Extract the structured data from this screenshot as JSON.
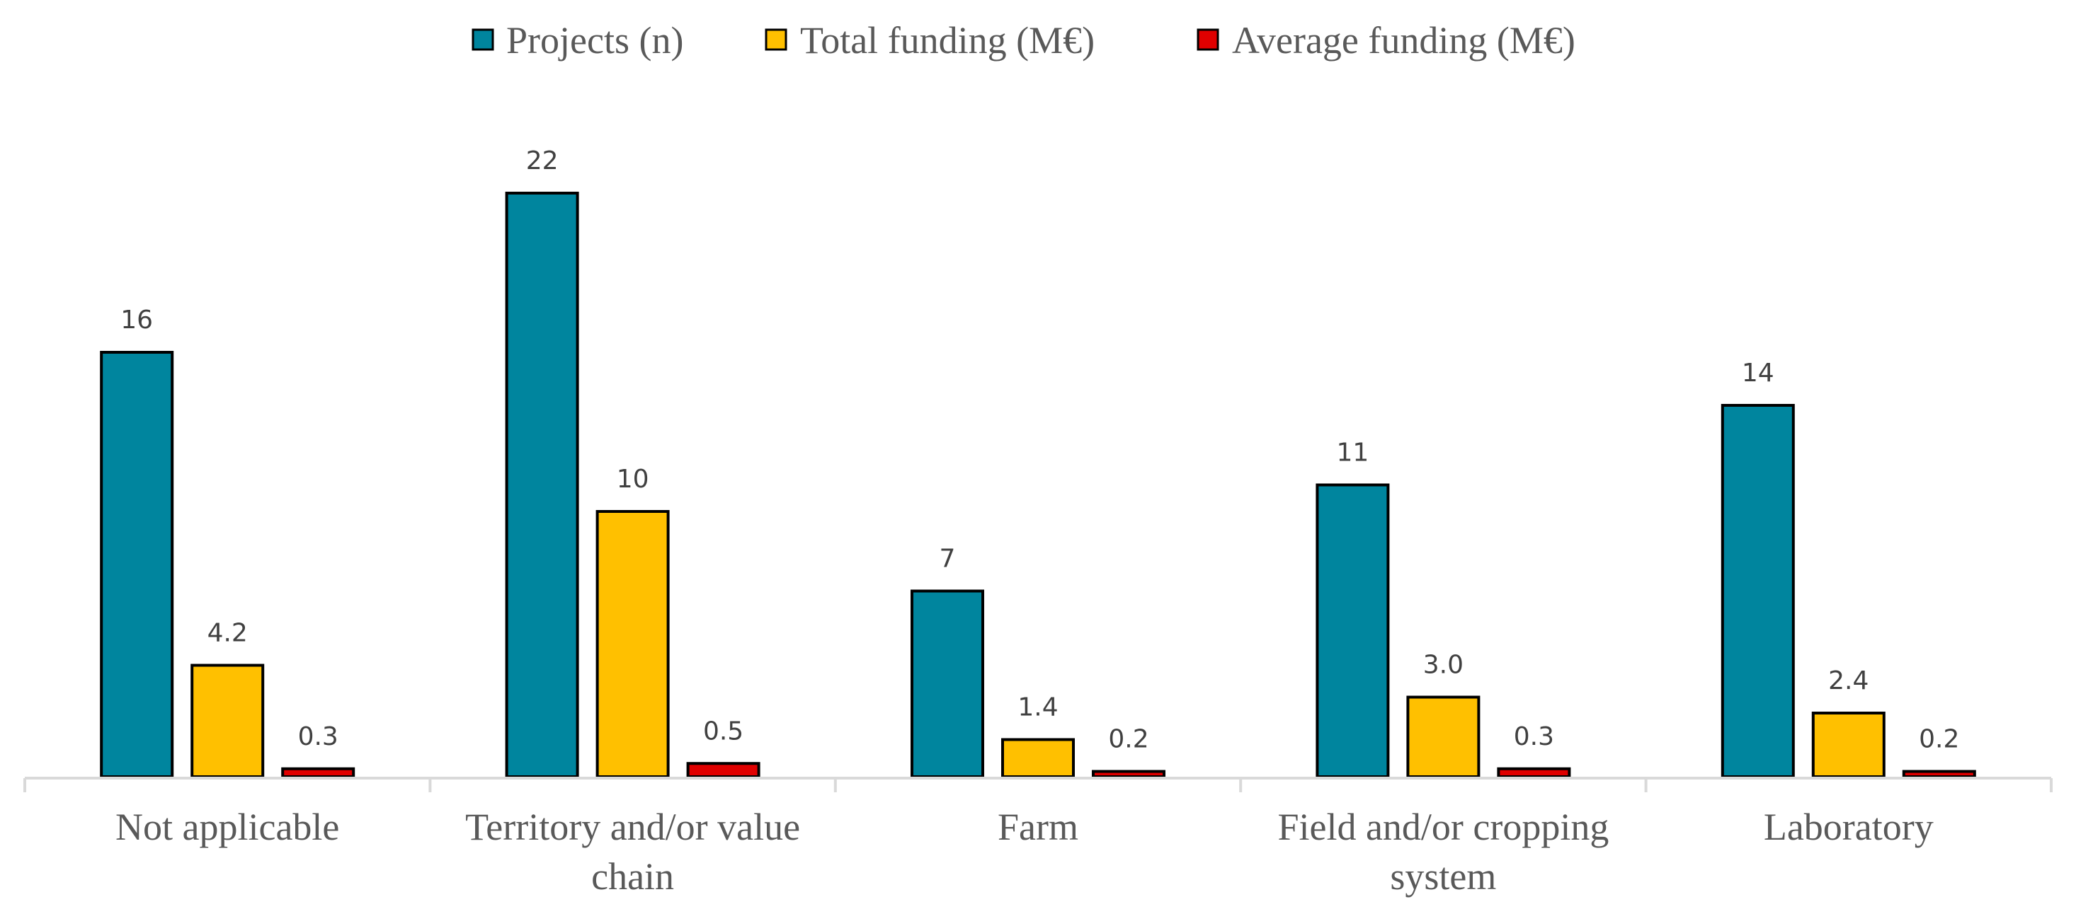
{
  "chart_data": {
    "type": "bar",
    "title": "",
    "xlabel": "",
    "ylabel": "",
    "ylim": [
      0,
      22
    ],
    "grid": false,
    "legend_position": "top",
    "categories": [
      "Not applicable",
      "Territory and/or value chain",
      "Farm",
      "Field and/or cropping system",
      "Laboratory"
    ],
    "series": [
      {
        "name": "Projects (n)",
        "color": "#00859E",
        "values": [
          16,
          22,
          7,
          11,
          14
        ],
        "labels": [
          "16",
          "22",
          "7",
          "11",
          "14"
        ]
      },
      {
        "name": "Total funding (M€)",
        "color": "#FFC000",
        "values": [
          4.2,
          10,
          1.4,
          3.0,
          2.4
        ],
        "labels": [
          "4.2",
          "10",
          "1.4",
          "3.0",
          "2.4"
        ]
      },
      {
        "name": "Average funding (M€)",
        "color": "#E00000",
        "values": [
          0.3,
          0.5,
          0.2,
          0.3,
          0.2
        ],
        "labels": [
          "0.3",
          "0.5",
          "0.2",
          "0.3",
          "0.2"
        ]
      }
    ]
  },
  "category_label_lines": [
    [
      "Not applicable"
    ],
    [
      "Territory and/or value",
      "chain"
    ],
    [
      "Farm"
    ],
    [
      "Field and/or cropping",
      "system"
    ],
    [
      "Laboratory"
    ]
  ]
}
